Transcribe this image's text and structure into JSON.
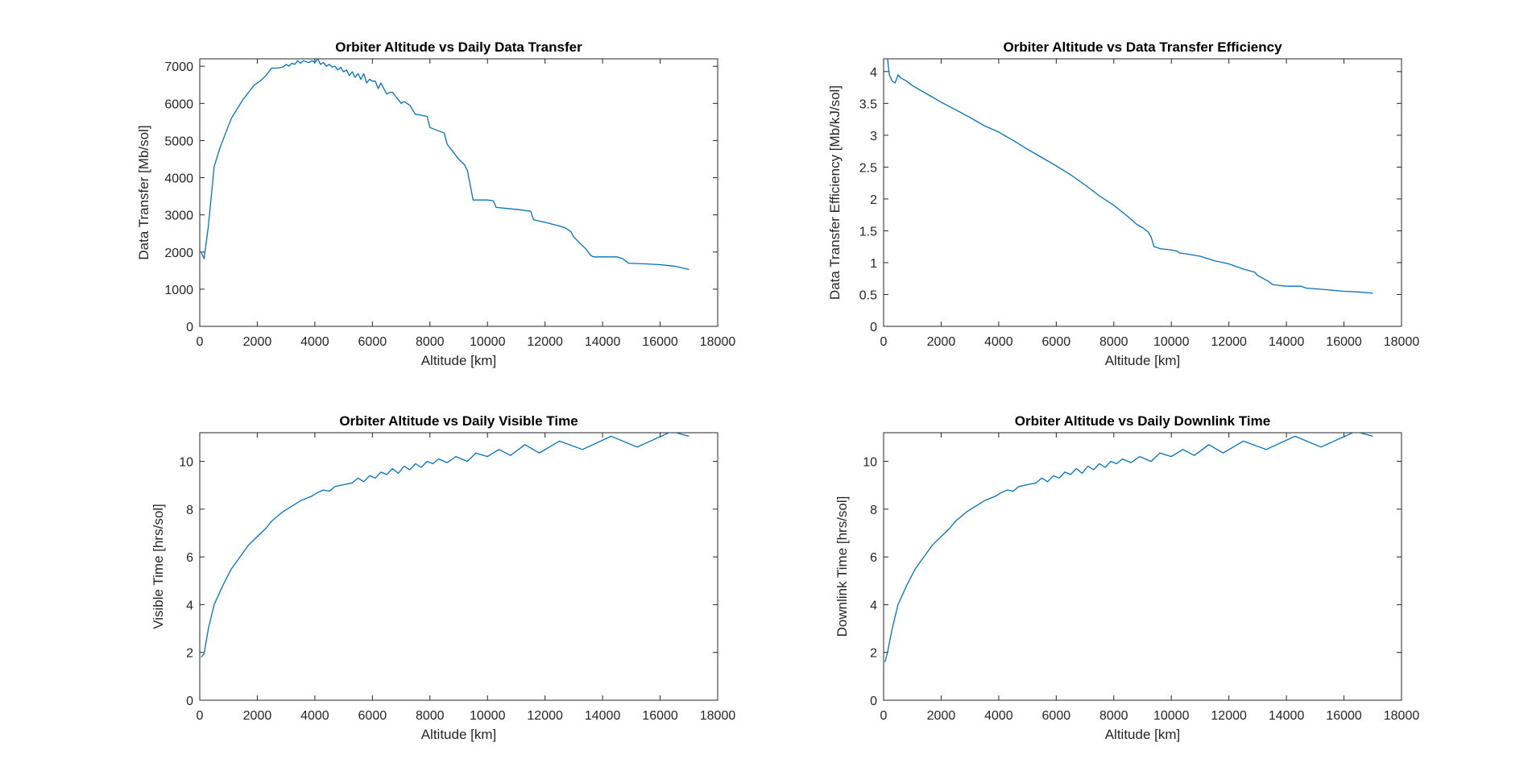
{
  "chart_data": [
    {
      "type": "line",
      "title": "Orbiter Altitude vs Daily Data Transfer",
      "xlabel": "Altitude [km]",
      "ylabel": "Data Transfer [Mb/sol]",
      "xlim": [
        0,
        18000
      ],
      "ylim": [
        0,
        7200
      ],
      "xticks": [
        0,
        2000,
        4000,
        6000,
        8000,
        10000,
        12000,
        14000,
        16000,
        18000
      ],
      "yticks": [
        0,
        1000,
        2000,
        3000,
        4000,
        5000,
        6000,
        7000
      ],
      "grid": false,
      "line_color": "#0072BD",
      "series": [
        {
          "x": [
            50,
            150,
            300,
            500,
            700,
            900,
            1100,
            1300,
            1500,
            1700,
            1900,
            2100,
            2300,
            2500,
            2700,
            2900,
            3000,
            3100,
            3200,
            3300,
            3400,
            3500,
            3600,
            3700,
            3800,
            3900,
            4000,
            4100,
            4200,
            4300,
            4400,
            4500,
            4600,
            4700,
            4800,
            4900,
            5000,
            5100,
            5200,
            5300,
            5400,
            5500,
            5600,
            5700,
            5800,
            5900,
            6000,
            6100,
            6200,
            6300,
            6500,
            6600,
            6700,
            7000,
            7100,
            7300,
            7500,
            7600,
            7900,
            8000,
            8500,
            8600,
            8800,
            9000,
            9200,
            9300,
            9400,
            9500,
            9600,
            10000,
            10200,
            10300,
            11000,
            11500,
            11600,
            12000,
            12500,
            12700,
            12900,
            13000,
            13200,
            13400,
            13600,
            13700,
            14500,
            14700,
            14900,
            15500,
            16000,
            16500,
            17000
          ],
          "y": [
            2000,
            1820,
            2700,
            4300,
            4800,
            5200,
            5600,
            5850,
            6100,
            6300,
            6500,
            6600,
            6750,
            6950,
            6950,
            6980,
            7050,
            7000,
            7080,
            7050,
            7150,
            7080,
            7150,
            7120,
            7100,
            7150,
            7100,
            7200,
            7050,
            7100,
            7000,
            7050,
            6980,
            7000,
            6900,
            6970,
            6850,
            6900,
            6750,
            6850,
            6700,
            6800,
            6650,
            6800,
            6550,
            6650,
            6600,
            6600,
            6400,
            6550,
            6250,
            6300,
            6300,
            6000,
            6050,
            5950,
            5700,
            5700,
            5650,
            5350,
            5200,
            4900,
            4700,
            4500,
            4350,
            4200,
            3800,
            3400,
            3400,
            3400,
            3380,
            3200,
            3150,
            3100,
            2870,
            2800,
            2700,
            2650,
            2550,
            2400,
            2250,
            2100,
            1900,
            1870,
            1870,
            1820,
            1700,
            1680,
            1660,
            1620,
            1530
          ]
        }
      ]
    },
    {
      "type": "line",
      "title": "Orbiter Altitude vs Data Transfer Efficiency",
      "xlabel": "Altitude [km]",
      "ylabel": "Data Transfer Efficiency [Mb/kJ/sol]",
      "xlim": [
        0,
        18000
      ],
      "ylim": [
        0,
        4.2
      ],
      "xticks": [
        0,
        2000,
        4000,
        6000,
        8000,
        10000,
        12000,
        14000,
        16000,
        18000
      ],
      "yticks": [
        0,
        0.5,
        1,
        1.5,
        2,
        2.5,
        3,
        3.5,
        4
      ],
      "grid": false,
      "line_color": "#0072BD",
      "series": [
        {
          "x": [
            80,
            120,
            150,
            200,
            300,
            400,
            500,
            600,
            800,
            1000,
            1500,
            2000,
            2500,
            3000,
            3500,
            4000,
            4500,
            5000,
            5500,
            6000,
            6500,
            7000,
            7500,
            8000,
            8500,
            8800,
            9000,
            9200,
            9300,
            9400,
            9500,
            9600,
            10000,
            10200,
            10300,
            10500,
            11000,
            11500,
            11600,
            12000,
            12500,
            12900,
            13000,
            13200,
            13400,
            13500,
            13600,
            14000,
            14500,
            14700,
            15000,
            15500,
            16000,
            16500,
            17000
          ],
          "y": [
            4.2,
            4.3,
            4.15,
            3.95,
            3.85,
            3.82,
            3.95,
            3.9,
            3.85,
            3.78,
            3.65,
            3.52,
            3.4,
            3.28,
            3.15,
            3.05,
            2.92,
            2.78,
            2.65,
            2.52,
            2.38,
            2.22,
            2.05,
            1.9,
            1.72,
            1.6,
            1.55,
            1.48,
            1.4,
            1.25,
            1.24,
            1.22,
            1.2,
            1.18,
            1.15,
            1.14,
            1.1,
            1.03,
            1.02,
            0.98,
            0.9,
            0.85,
            0.8,
            0.75,
            0.7,
            0.66,
            0.65,
            0.63,
            0.63,
            0.6,
            0.59,
            0.57,
            0.55,
            0.54,
            0.52
          ]
        }
      ]
    },
    {
      "type": "line",
      "title": "Orbiter Altitude vs Daily Visible Time",
      "xlabel": "Altitude [km]",
      "ylabel": "Visible Time  [hrs/sol]",
      "xlim": [
        0,
        18000
      ],
      "ylim": [
        0,
        11.2
      ],
      "xticks": [
        0,
        2000,
        4000,
        6000,
        8000,
        10000,
        12000,
        14000,
        16000,
        18000
      ],
      "yticks": [
        0,
        2,
        4,
        6,
        8,
        10
      ],
      "grid": false,
      "line_color": "#0072BD",
      "series": [
        {
          "x": [
            50,
            150,
            300,
            500,
            800,
            1100,
            1400,
            1700,
            2000,
            2300,
            2500,
            2700,
            2900,
            3100,
            3300,
            3500,
            3700,
            3900,
            4100,
            4300,
            4500,
            4700,
            4900,
            5100,
            5300,
            5500,
            5700,
            5900,
            6100,
            6300,
            6500,
            6700,
            6900,
            7100,
            7300,
            7500,
            7700,
            7900,
            8100,
            8300,
            8600,
            8900,
            9300,
            9600,
            10000,
            10400,
            10800,
            11300,
            11800,
            12500,
            13300,
            14300,
            15200,
            16400,
            17000
          ],
          "y": [
            1.8,
            1.95,
            3.0,
            4.0,
            4.8,
            5.5,
            6.0,
            6.5,
            6.85,
            7.2,
            7.5,
            7.7,
            7.9,
            8.05,
            8.2,
            8.35,
            8.45,
            8.55,
            8.7,
            8.8,
            8.75,
            8.95,
            9.0,
            9.05,
            9.1,
            9.3,
            9.15,
            9.4,
            9.3,
            9.55,
            9.45,
            9.7,
            9.5,
            9.8,
            9.65,
            9.9,
            9.75,
            10.0,
            9.9,
            10.1,
            9.95,
            10.2,
            10.0,
            10.35,
            10.2,
            10.5,
            10.25,
            10.7,
            10.35,
            10.85,
            10.5,
            11.05,
            10.6,
            11.25,
            11.05
          ]
        }
      ]
    },
    {
      "type": "line",
      "title": "Orbiter Altitude vs Daily Downlink Time",
      "xlabel": "Altitude [km]",
      "ylabel": "Downlink Time  [hrs/sol]",
      "xlim": [
        0,
        18000
      ],
      "ylim": [
        0,
        11.2
      ],
      "xticks": [
        0,
        2000,
        4000,
        6000,
        8000,
        10000,
        12000,
        14000,
        16000,
        18000
      ],
      "yticks": [
        0,
        2,
        4,
        6,
        8,
        10
      ],
      "grid": false,
      "line_color": "#0072BD",
      "series": [
        {
          "x": [
            50,
            150,
            300,
            500,
            800,
            1100,
            1400,
            1700,
            2000,
            2300,
            2500,
            2700,
            2900,
            3100,
            3300,
            3500,
            3700,
            3900,
            4100,
            4300,
            4500,
            4700,
            4900,
            5100,
            5300,
            5500,
            5700,
            5900,
            6100,
            6300,
            6500,
            6700,
            6900,
            7100,
            7300,
            7500,
            7700,
            7900,
            8100,
            8300,
            8600,
            8900,
            9300,
            9600,
            10000,
            10400,
            10800,
            11300,
            11800,
            12500,
            13300,
            14300,
            15200,
            16400,
            17000
          ],
          "y": [
            1.6,
            2.1,
            3.0,
            4.0,
            4.8,
            5.5,
            6.0,
            6.5,
            6.85,
            7.2,
            7.5,
            7.7,
            7.9,
            8.05,
            8.2,
            8.35,
            8.45,
            8.55,
            8.7,
            8.8,
            8.75,
            8.95,
            9.0,
            9.05,
            9.1,
            9.3,
            9.15,
            9.4,
            9.3,
            9.55,
            9.45,
            9.7,
            9.5,
            9.8,
            9.65,
            9.9,
            9.75,
            10.0,
            9.9,
            10.1,
            9.95,
            10.2,
            10.0,
            10.35,
            10.2,
            10.5,
            10.25,
            10.7,
            10.35,
            10.85,
            10.5,
            11.05,
            10.6,
            11.25,
            11.05
          ]
        }
      ]
    }
  ]
}
